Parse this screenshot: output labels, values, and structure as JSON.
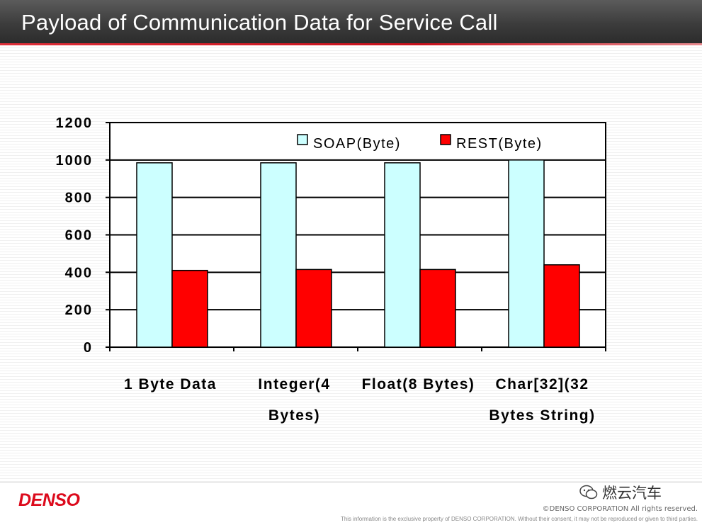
{
  "slide": {
    "title": "Payload of Communication Data for Service Call"
  },
  "chart_data": {
    "type": "bar",
    "title": "",
    "xlabel": "",
    "ylabel": "",
    "ylim": [
      0,
      1200
    ],
    "yticks": [
      "0",
      "200",
      "400",
      "600",
      "800",
      "1000",
      "1200"
    ],
    "grid": true,
    "legend_position": "top-right",
    "categories": [
      [
        "1 Byte Data"
      ],
      [
        "Integer(4",
        "Bytes)"
      ],
      [
        "Float(8 Bytes)"
      ],
      [
        "Char[32](32",
        "Bytes String)"
      ]
    ],
    "series": [
      {
        "name": "SOAP(Byte)",
        "color": "#ccffff",
        "values": [
          985,
          985,
          985,
          1000
        ]
      },
      {
        "name": "REST(Byte)",
        "color": "#ff0000",
        "values": [
          410,
          415,
          415,
          440
        ]
      }
    ]
  },
  "footer": {
    "logo": "DENSO",
    "wechat": "燃云汽车",
    "wechat_icon": "wechat-icon",
    "copyright": "©DENSO CORPORATION All rights reserved.",
    "disclaimer": "This information is the exclusive property of DENSO CORPORATION.  Without their consent, it may not be reproduced or given to third parties."
  }
}
